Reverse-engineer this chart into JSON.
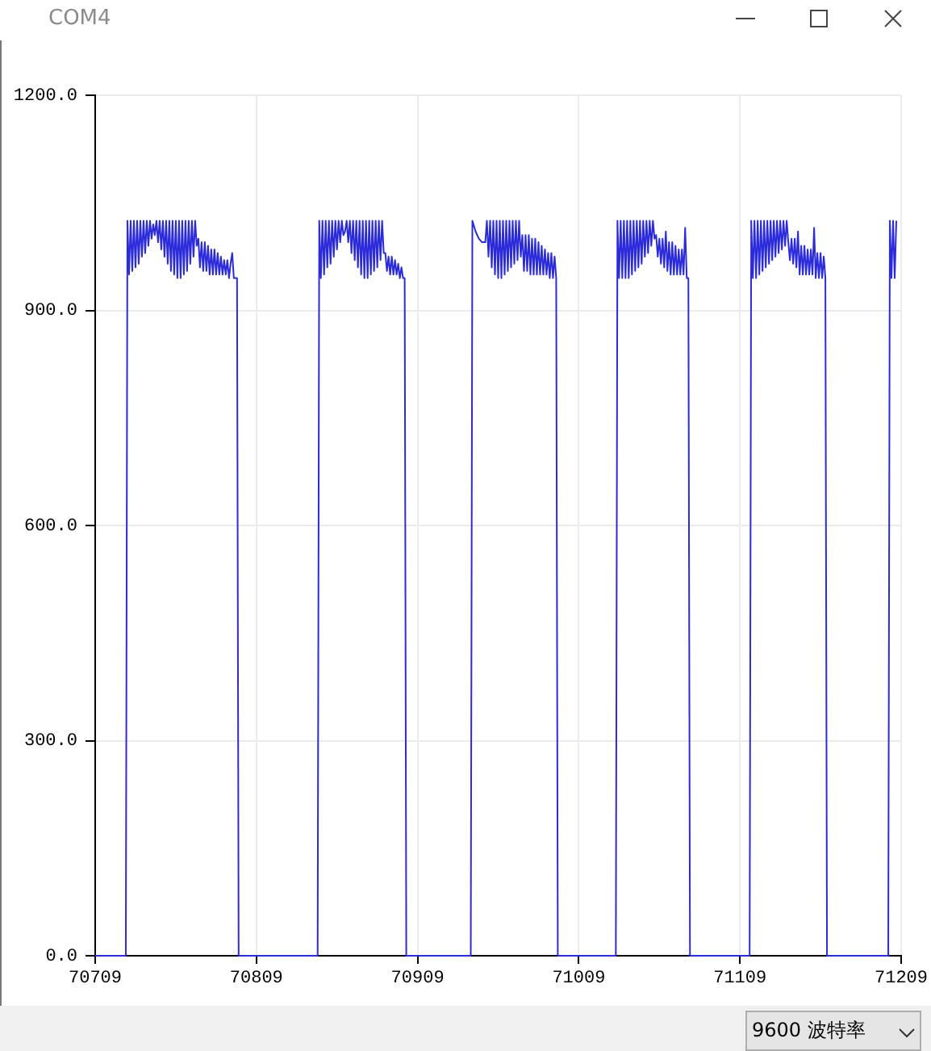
{
  "chart_data": {
    "type": "line",
    "title": "COM4",
    "annotations": [
      "9600 波特率"
    ],
    "color": "#2b2bdb",
    "x": [
      70709,
      70728,
      70729,
      70730,
      70731,
      70732,
      70733,
      70734,
      70735,
      70736,
      70737,
      70738,
      70739,
      70740,
      70741,
      70742,
      70743,
      70744,
      70745,
      70746,
      70747,
      70748,
      70749,
      70750,
      70751,
      70752,
      70753,
      70754,
      70755,
      70756,
      70757,
      70758,
      70759,
      70760,
      70761,
      70762,
      70763,
      70764,
      70765,
      70766,
      70767,
      70768,
      70769,
      70770,
      70771,
      70772,
      70773,
      70774,
      70775,
      70776,
      70777,
      70778,
      70779,
      70780,
      70781,
      70782,
      70783,
      70784,
      70785,
      70786,
      70787,
      70788,
      70789,
      70790,
      70791,
      70792,
      70793,
      70794,
      70795,
      70796,
      70797,
      70798,
      70847,
      70848,
      70849,
      70850,
      70851,
      70852,
      70853,
      70854,
      70855,
      70856,
      70857,
      70858,
      70859,
      70860,
      70861,
      70862,
      70863,
      70864,
      70865,
      70866,
      70867,
      70868,
      70869,
      70870,
      70871,
      70872,
      70873,
      70874,
      70875,
      70876,
      70877,
      70878,
      70879,
      70880,
      70881,
      70882,
      70883,
      70884,
      70885,
      70886,
      70887,
      70888,
      70889,
      70890,
      70891,
      70892,
      70893,
      70894,
      70895,
      70896,
      70897,
      70898,
      70899,
      70900,
      70901,
      70902,
      70942,
      70943,
      70945,
      70947,
      70949,
      70951,
      70952,
      70953,
      70954,
      70955,
      70956,
      70957,
      70958,
      70959,
      70960,
      70961,
      70962,
      70963,
      70964,
      70965,
      70966,
      70967,
      70968,
      70969,
      70970,
      70971,
      70972,
      70973,
      70974,
      70975,
      70976,
      70977,
      70978,
      70979,
      70980,
      70981,
      70982,
      70983,
      70984,
      70985,
      70986,
      70987,
      70988,
      70989,
      70990,
      70991,
      70992,
      70993,
      70994,
      70995,
      70996,
      71032,
      71033,
      71034,
      71035,
      71036,
      71037,
      71038,
      71039,
      71040,
      71041,
      71042,
      71043,
      71044,
      71045,
      71046,
      71047,
      71048,
      71049,
      71050,
      71051,
      71052,
      71053,
      71054,
      71055,
      71056,
      71057,
      71058,
      71059,
      71060,
      71061,
      71062,
      71063,
      71064,
      71065,
      71066,
      71067,
      71068,
      71069,
      71070,
      71071,
      71072,
      71073,
      71074,
      71075,
      71076,
      71077,
      71078,
      71115,
      71116,
      71117,
      71118,
      71119,
      71120,
      71121,
      71122,
      71123,
      71124,
      71125,
      71126,
      71127,
      71128,
      71129,
      71130,
      71131,
      71132,
      71133,
      71134,
      71135,
      71136,
      71137,
      71138,
      71139,
      71140,
      71141,
      71142,
      71143,
      71144,
      71145,
      71146,
      71147,
      71148,
      71149,
      71150,
      71151,
      71152,
      71153,
      71154,
      71155,
      71156,
      71157,
      71158,
      71159,
      71160,
      71161,
      71162,
      71163,
      71201,
      71202,
      71203,
      71204,
      71205,
      71206
    ],
    "values": [
      0,
      0,
      1025,
      950,
      1025,
      955,
      1025,
      960,
      1025,
      965,
      1025,
      975,
      1025,
      980,
      1025,
      990,
      1025,
      1000,
      1020,
      1005,
      1025,
      995,
      1025,
      985,
      1025,
      975,
      1025,
      965,
      1025,
      955,
      1025,
      950,
      1025,
      945,
      1025,
      945,
      1025,
      950,
      1025,
      955,
      1025,
      965,
      1025,
      975,
      1025,
      990,
      1000,
      960,
      995,
      955,
      995,
      955,
      990,
      950,
      985,
      950,
      985,
      950,
      980,
      950,
      975,
      950,
      970,
      950,
      970,
      945,
      965,
      980,
      945,
      945,
      945,
      0,
      0,
      1025,
      945,
      1025,
      950,
      1025,
      960,
      1025,
      965,
      1025,
      975,
      1025,
      985,
      1025,
      995,
      1025,
      1005,
      1010,
      1025,
      995,
      1025,
      980,
      1025,
      970,
      1025,
      960,
      1025,
      950,
      1025,
      945,
      1025,
      945,
      1025,
      950,
      1025,
      955,
      1025,
      960,
      1025,
      970,
      1025,
      980,
      980,
      955,
      975,
      950,
      975,
      950,
      970,
      950,
      965,
      945,
      960,
      945,
      945,
      0,
      0,
      1025,
      1010,
      1000,
      995,
      995,
      1025,
      975,
      1025,
      960,
      1025,
      950,
      1025,
      945,
      1025,
      945,
      1025,
      950,
      1025,
      955,
      1025,
      960,
      1025,
      965,
      1025,
      970,
      1025,
      975,
      1005,
      955,
      1005,
      955,
      1005,
      950,
      1000,
      950,
      1000,
      950,
      995,
      950,
      990,
      950,
      985,
      950,
      980,
      945,
      980,
      945,
      975,
      945,
      0,
      0,
      1025,
      945,
      1025,
      945,
      1025,
      945,
      1025,
      945,
      1025,
      950,
      1025,
      955,
      1025,
      960,
      1025,
      965,
      1025,
      975,
      1025,
      980,
      1025,
      990,
      1025,
      1000,
      1005,
      975,
      1000,
      965,
      1000,
      960,
      1010,
      955,
      995,
      950,
      995,
      950,
      990,
      950,
      985,
      950,
      985,
      950,
      1015,
      945,
      945,
      0,
      0,
      1025,
      945,
      1025,
      945,
      1025,
      950,
      1025,
      955,
      1025,
      960,
      1025,
      965,
      1025,
      970,
      1025,
      975,
      1025,
      980,
      1025,
      985,
      1025,
      990,
      1025,
      995,
      970,
      1000,
      965,
      1000,
      960,
      1010,
      950,
      990,
      950,
      990,
      950,
      985,
      950,
      985,
      950,
      1015,
      945,
      980,
      945,
      980,
      945,
      975,
      945,
      0,
      0,
      1025,
      945,
      1025,
      945,
      1025
    ],
    "xlim": [
      70709,
      71209
    ],
    "xticks": [
      70709,
      70809,
      70909,
      71009,
      71109,
      71209
    ],
    "ylim": [
      0,
      1200
    ],
    "yticks": [
      {
        "value": 0,
        "label": "0.0"
      },
      {
        "value": 300,
        "label": "300.0"
      },
      {
        "value": 600,
        "label": "600.0"
      },
      {
        "value": 900,
        "label": "900.0"
      },
      {
        "value": 1200,
        "label": "1200.0"
      }
    ],
    "grid": true
  }
}
